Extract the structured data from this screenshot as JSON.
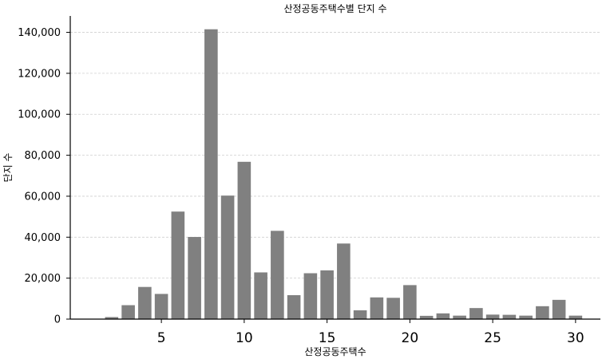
{
  "chart_data": {
    "type": "bar",
    "title": "산정공동주택수별 단지 수",
    "xlabel": "산정공동주택수",
    "ylabel": "단지 수",
    "bar_color": "#808080",
    "grid": true,
    "x": [
      2,
      3,
      4,
      5,
      6,
      7,
      8,
      9,
      10,
      11,
      12,
      13,
      14,
      15,
      16,
      17,
      18,
      19,
      20,
      21,
      22,
      23,
      24,
      25,
      26,
      27,
      28,
      29,
      30
    ],
    "values": [
      1000,
      6800,
      15700,
      12300,
      52500,
      40100,
      141500,
      60300,
      76800,
      22800,
      43100,
      11700,
      22400,
      23800,
      36900,
      4300,
      10600,
      10400,
      16600,
      1600,
      2800,
      1700,
      5400,
      2200,
      2100,
      1700,
      6300,
      9400,
      1700
    ],
    "xlim": [
      -0.5,
      31.5
    ],
    "ylim": [
      0,
      148000
    ],
    "x_ticks": [
      5,
      10,
      15,
      20,
      25,
      30
    ],
    "x_tick_labels": [
      "5",
      "10",
      "15",
      "20",
      "25",
      "30"
    ],
    "y_ticks": [
      0,
      20000,
      40000,
      60000,
      80000,
      100000,
      120000,
      140000
    ],
    "y_tick_labels": [
      "0",
      "20,000",
      "40,000",
      "60,000",
      "80,000",
      "100,000",
      "120,000",
      "140,000"
    ]
  }
}
